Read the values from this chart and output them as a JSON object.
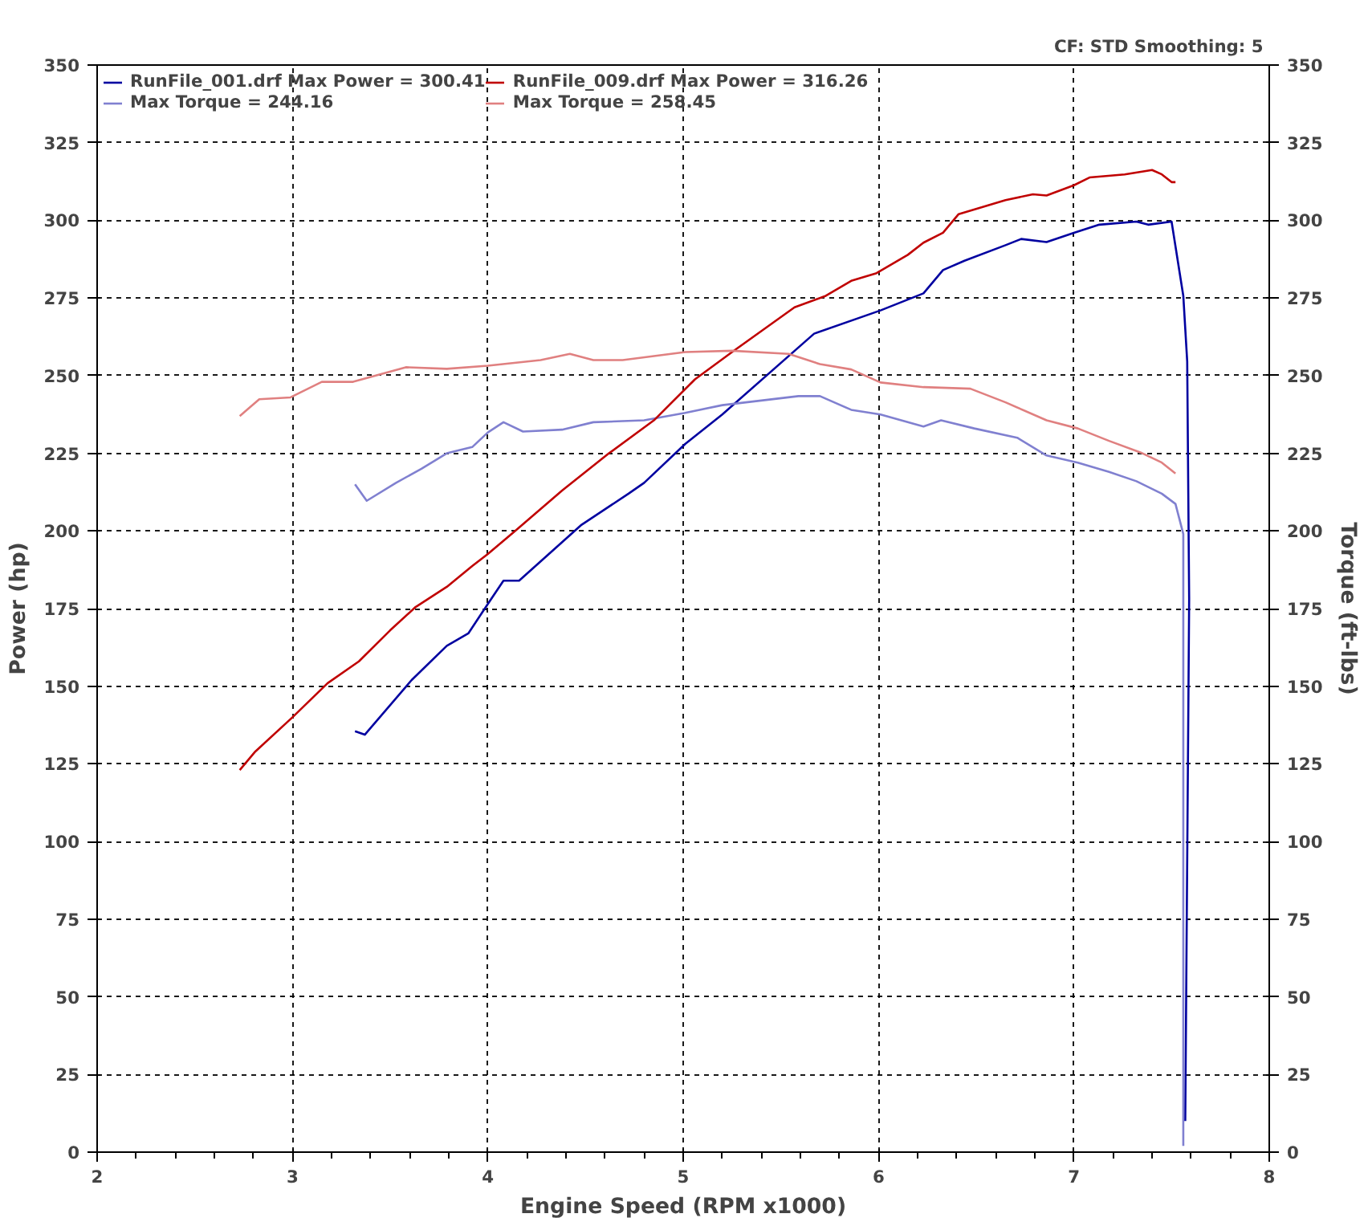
{
  "chart_data": {
    "type": "line",
    "xlabel": "Engine Speed (RPM x1000)",
    "ylabel": "Power (hp)",
    "y2label": "Torque (ft-lbs)",
    "annotations": [
      "CF: STD  Smoothing: 5"
    ],
    "xlim": [
      2,
      8
    ],
    "xticks": [
      2,
      3,
      4,
      5,
      6,
      7,
      8
    ],
    "ylim": [
      0,
      350
    ],
    "yticks": [
      0,
      25,
      50,
      75,
      100,
      125,
      150,
      175,
      200,
      225,
      250,
      275,
      300,
      325,
      350
    ],
    "y2lim": [
      0,
      350
    ],
    "y2ticks": [
      0,
      25,
      50,
      75,
      100,
      125,
      150,
      175,
      200,
      225,
      250,
      275,
      300,
      325,
      350
    ],
    "grid": true,
    "legend": "top left",
    "series": [
      {
        "name": "RunFile_001.drf Max Power = 300.41",
        "color": "#0000a0",
        "x": [
          3.32,
          3.37,
          3.61,
          3.79,
          3.9,
          4.0,
          4.08,
          4.16,
          4.48,
          4.72,
          4.8,
          5.01,
          5.2,
          5.67,
          6.01,
          6.23,
          6.33,
          6.44,
          6.65,
          6.73,
          6.86,
          7.0,
          7.13,
          7.32,
          7.38,
          7.5,
          7.56,
          7.58,
          7.59,
          7.57
        ],
        "values": [
          135.5,
          134.4,
          152,
          163,
          167,
          176.5,
          184,
          184,
          202,
          212,
          215.5,
          228,
          237.5,
          263.5,
          271,
          276.5,
          284,
          287,
          292,
          294,
          293,
          296,
          298.6,
          299.6,
          298.6,
          299.6,
          275.7,
          254.6,
          178,
          10
        ]
      },
      {
        "name": "Max Torque = 244.16",
        "color": "#8080d0",
        "x": [
          3.32,
          3.38,
          3.53,
          3.66,
          3.79,
          3.92,
          4.0,
          4.08,
          4.18,
          4.38,
          4.54,
          4.8,
          5.01,
          5.2,
          5.59,
          5.7,
          5.86,
          6.01,
          6.23,
          6.32,
          6.49,
          6.71,
          6.86,
          7.02,
          7.18,
          7.32,
          7.45,
          7.52,
          7.56,
          7.56,
          7.56
        ],
        "values": [
          215,
          209.7,
          215.5,
          220,
          225,
          227,
          231.7,
          235,
          232,
          232.6,
          235,
          235.6,
          238,
          240.5,
          243.4,
          243.4,
          239,
          237.5,
          233.6,
          235.6,
          233,
          230,
          224.3,
          222,
          219,
          216,
          212,
          208.7,
          199,
          179,
          2
        ]
      },
      {
        "name": "RunFile_009.drf Max Power = 316.26",
        "color": "#c00000",
        "x": [
          2.73,
          2.81,
          3.0,
          3.18,
          3.34,
          3.5,
          3.63,
          3.79,
          3.92,
          4.0,
          4.14,
          4.38,
          4.62,
          4.85,
          5.06,
          5.25,
          5.57,
          5.73,
          5.86,
          5.99,
          6.15,
          6.23,
          6.33,
          6.41,
          6.65,
          6.79,
          6.86,
          7.0,
          7.08,
          7.26,
          7.4,
          7.45,
          7.5,
          7.52
        ],
        "values": [
          123,
          129,
          140,
          151,
          158,
          168,
          175.5,
          182,
          188.7,
          192.6,
          200,
          213,
          225,
          235.6,
          248.8,
          257.6,
          272,
          275.7,
          280.5,
          283,
          288.9,
          292.8,
          296,
          302,
          306.5,
          308.4,
          308,
          311.3,
          313.8,
          314.8,
          316.2,
          314.8,
          312.3,
          312.3
        ]
      },
      {
        "name": "Max Torque = 258.45",
        "color": "#e08080",
        "x": [
          2.73,
          2.83,
          2.99,
          3.15,
          3.31,
          3.58,
          3.79,
          4.0,
          4.27,
          4.42,
          4.54,
          4.69,
          5.01,
          5.25,
          5.54,
          5.7,
          5.86,
          6.01,
          6.23,
          6.47,
          6.65,
          6.86,
          7.02,
          7.18,
          7.34,
          7.45,
          7.52
        ],
        "values": [
          237,
          242.4,
          243,
          248,
          248,
          252.7,
          252.2,
          253.2,
          255,
          257,
          255,
          255,
          257.6,
          258,
          257,
          253.7,
          252,
          247.8,
          246.3,
          245.8,
          241.4,
          235.6,
          233,
          229,
          225.3,
          222,
          218.5
        ]
      }
    ]
  }
}
